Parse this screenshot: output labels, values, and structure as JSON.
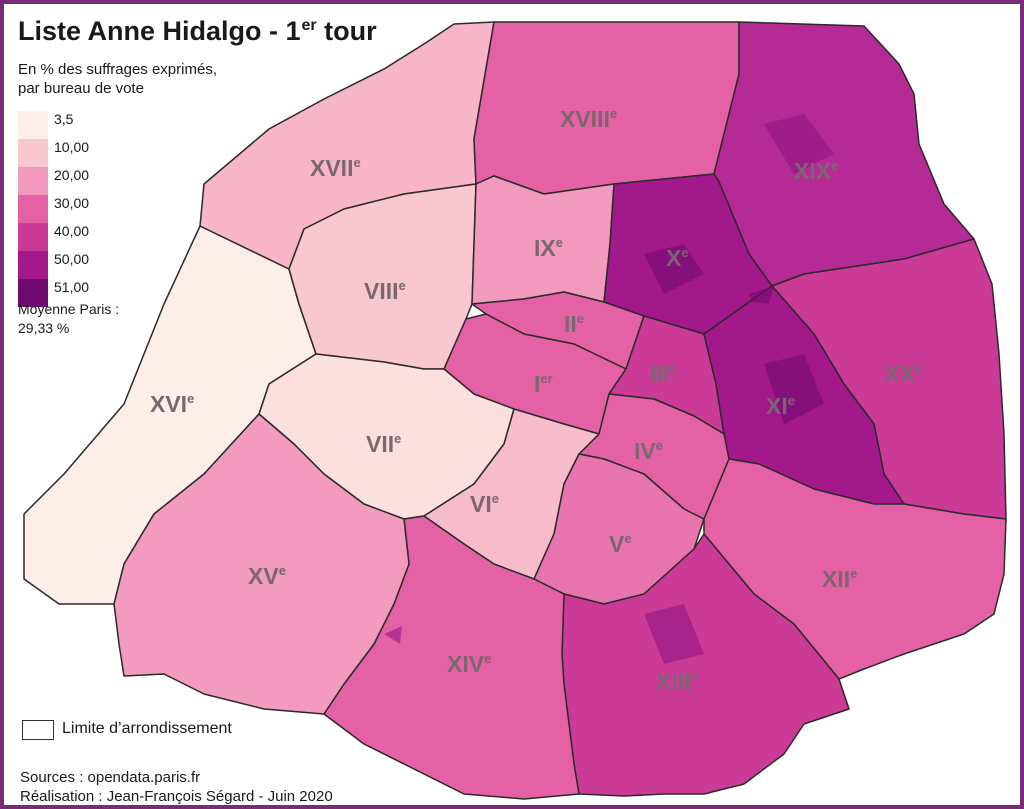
{
  "title": {
    "main": "Liste Anne Hidalgo - 1",
    "sup": "er",
    "rest": " tour"
  },
  "subtitle": {
    "line1": "En % des suffrages exprimés,",
    "line2": "par bureau de vote"
  },
  "legend": {
    "classes": [
      {
        "label": "3,5",
        "color": "#fdeee9"
      },
      {
        "label": "10,00",
        "color": "#f9c7cf"
      },
      {
        "label": "20,00",
        "color": "#f29bbf"
      },
      {
        "label": "30,00",
        "color": "#e561a6"
      },
      {
        "label": "40,00",
        "color": "#cc3a98"
      },
      {
        "label": "50,00",
        "color": "#a3198c"
      }
    ],
    "last_label": "51,00",
    "last_color": "#6e0a6e"
  },
  "average": {
    "line1": "Moyenne  Paris :",
    "line2": "29,33 %"
  },
  "limit_legend": "Limite d’arrondissement",
  "sources": {
    "line1": "Sources : opendata.paris.fr",
    "line2": "Réalisation : Jean-François Ségard - Juin 2020"
  },
  "arrondissements": [
    {
      "id": "1",
      "num": "I",
      "sup": "er",
      "fill": "#e561a6"
    },
    {
      "id": "2",
      "num": "II",
      "sup": "e",
      "fill": "#e561a6"
    },
    {
      "id": "3",
      "num": "III",
      "sup": "e",
      "fill": "#cc3a98"
    },
    {
      "id": "4",
      "num": "IV",
      "sup": "e",
      "fill": "#e561a6"
    },
    {
      "id": "5",
      "num": "V",
      "sup": "e",
      "fill": "#e874b0"
    },
    {
      "id": "6",
      "num": "VI",
      "sup": "e",
      "fill": "#f7bccb"
    },
    {
      "id": "7",
      "num": "VII",
      "sup": "e",
      "fill": "#fce0df"
    },
    {
      "id": "8",
      "num": "VIII",
      "sup": "e",
      "fill": "#f9c7cf"
    },
    {
      "id": "9",
      "num": "IX",
      "sup": "e",
      "fill": "#f29bbf"
    },
    {
      "id": "10",
      "num": "X",
      "sup": "e",
      "fill": "#a3198c"
    },
    {
      "id": "11",
      "num": "XI",
      "sup": "e",
      "fill": "#a3198c"
    },
    {
      "id": "12",
      "num": "XII",
      "sup": "e",
      "fill": "#e561a6"
    },
    {
      "id": "13",
      "num": "XIII",
      "sup": "e",
      "fill": "#cc3a98"
    },
    {
      "id": "14",
      "num": "XIV",
      "sup": "e",
      "fill": "#e561a6"
    },
    {
      "id": "15",
      "num": "XV",
      "sup": "e",
      "fill": "#f29bbf"
    },
    {
      "id": "16",
      "num": "XVI",
      "sup": "e",
      "fill": "#fdeee9"
    },
    {
      "id": "17",
      "num": "XVII",
      "sup": "e",
      "fill": "#f7b5c7"
    },
    {
      "id": "18",
      "num": "XVIII",
      "sup": "e",
      "fill": "#e561a6"
    },
    {
      "id": "19",
      "num": "XIX",
      "sup": "e",
      "fill": "#b52a95"
    },
    {
      "id": "20",
      "num": "XX",
      "sup": "e",
      "fill": "#cc3a98"
    }
  ]
}
